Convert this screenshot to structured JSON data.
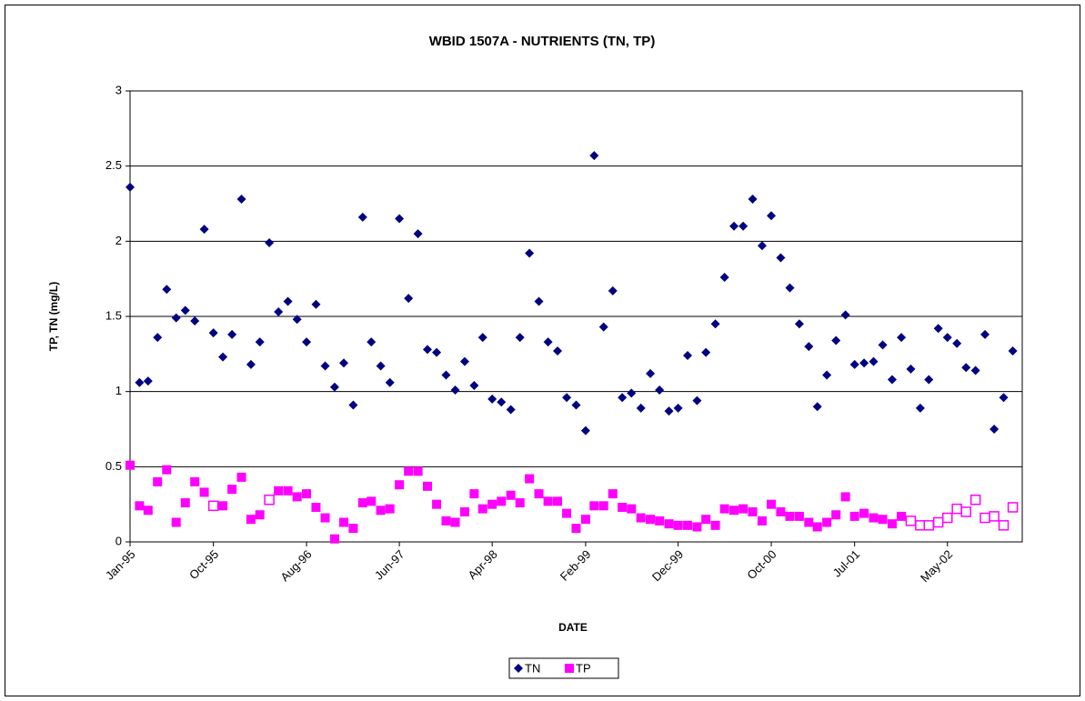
{
  "chart_data": {
    "type": "scatter",
    "title": "WBID 1507A - NUTRIENTS (TN, TP)",
    "x_label": "DATE",
    "y_label": "TP, TN (mg/L)",
    "x": [
      "1995-01",
      "1995-02",
      "1995-03",
      "1995-04",
      "1995-05",
      "1995-06",
      "1995-07",
      "1995-08",
      "1995-09",
      "1995-10",
      "1995-11",
      "1995-12",
      "1996-01",
      "1996-02",
      "1996-03",
      "1996-04",
      "1996-05",
      "1996-06",
      "1996-07",
      "1996-08",
      "1996-09",
      "1996-10",
      "1996-11",
      "1996-12",
      "1997-01",
      "1997-02",
      "1997-03",
      "1997-04",
      "1997-05",
      "1997-06",
      "1997-07",
      "1997-08",
      "1997-09",
      "1997-10",
      "1997-11",
      "1997-12",
      "1998-01",
      "1998-02",
      "1998-03",
      "1998-04",
      "1998-05",
      "1998-06",
      "1998-07",
      "1998-08",
      "1998-09",
      "1998-10",
      "1998-11",
      "1998-12",
      "1999-01",
      "1999-02",
      "1999-03",
      "1999-04",
      "1999-05",
      "1999-06",
      "1999-07",
      "1999-08",
      "1999-09",
      "1999-10",
      "1999-11",
      "1999-12",
      "2000-01",
      "2000-02",
      "2000-03",
      "2000-04",
      "2000-05",
      "2000-06",
      "2000-07",
      "2000-08",
      "2000-09",
      "2000-10",
      "2000-11",
      "2000-12",
      "2001-01",
      "2001-02",
      "2001-03",
      "2001-04",
      "2001-05",
      "2001-06",
      "2001-07",
      "2001-08",
      "2001-09",
      "2001-10",
      "2001-11",
      "2001-12",
      "2002-01",
      "2002-02",
      "2002-03",
      "2002-04",
      "2002-05",
      "2002-06",
      "2002-07",
      "2002-08",
      "2002-09",
      "2002-10",
      "2002-11",
      "2002-12"
    ],
    "series": [
      {
        "name": "TN",
        "color": "#000080",
        "marker": "diamond",
        "values": [
          2.36,
          1.06,
          1.07,
          1.36,
          1.68,
          1.49,
          1.54,
          1.47,
          2.08,
          1.39,
          1.23,
          1.38,
          2.28,
          1.18,
          1.33,
          1.99,
          1.53,
          1.6,
          1.48,
          1.33,
          1.58,
          1.17,
          1.03,
          1.19,
          0.91,
          2.16,
          1.33,
          1.17,
          1.06,
          2.15,
          1.62,
          2.05,
          1.28,
          1.26,
          1.11,
          1.01,
          1.2,
          1.04,
          1.36,
          0.95,
          0.93,
          0.88,
          1.36,
          1.92,
          1.6,
          1.33,
          1.27,
          0.96,
          0.91,
          0.74,
          2.57,
          1.43,
          1.67,
          0.96,
          0.99,
          0.89,
          1.12,
          1.01,
          0.87,
          0.89,
          1.24,
          0.94,
          1.26,
          1.45,
          1.76,
          2.1,
          2.1,
          2.28,
          1.97,
          2.17,
          1.89,
          1.69,
          1.45,
          1.3,
          0.9,
          1.11,
          1.34,
          1.51,
          1.18,
          1.19,
          1.2,
          1.31,
          1.08,
          1.36,
          1.15,
          0.89,
          1.08,
          1.42,
          1.36,
          1.32,
          1.16,
          1.14,
          1.38,
          0.75,
          0.96,
          1.27
        ]
      },
      {
        "name": "TP",
        "color": "#ff00ff",
        "marker": "square",
        "hollow": [
          9,
          15,
          84,
          85,
          86,
          87,
          88,
          89,
          90,
          91,
          92,
          93,
          94,
          95
        ],
        "values": [
          0.51,
          0.24,
          0.21,
          0.4,
          0.48,
          0.13,
          0.26,
          0.4,
          0.33,
          0.24,
          0.24,
          0.35,
          0.43,
          0.15,
          0.18,
          0.28,
          0.34,
          0.34,
          0.3,
          0.32,
          0.23,
          0.16,
          0.02,
          0.13,
          0.09,
          0.26,
          0.27,
          0.21,
          0.22,
          0.38,
          0.47,
          0.47,
          0.37,
          0.25,
          0.14,
          0.13,
          0.2,
          0.32,
          0.22,
          0.25,
          0.27,
          0.31,
          0.26,
          0.42,
          0.32,
          0.27,
          0.27,
          0.19,
          0.09,
          0.15,
          0.24,
          0.24,
          0.32,
          0.23,
          0.22,
          0.16,
          0.15,
          0.14,
          0.12,
          0.11,
          0.11,
          0.1,
          0.15,
          0.11,
          0.22,
          0.21,
          0.22,
          0.2,
          0.14,
          0.25,
          0.2,
          0.17,
          0.17,
          0.13,
          0.1,
          0.13,
          0.18,
          0.3,
          0.17,
          0.19,
          0.16,
          0.15,
          0.12,
          0.17,
          0.14,
          0.11,
          0.11,
          0.13,
          0.16,
          0.22,
          0.2,
          0.28,
          0.16,
          0.17,
          0.11,
          0.23
        ]
      }
    ],
    "xlim": [
      "1995-01",
      "2003-01"
    ],
    "xticks": [
      {
        "value": "1995-01",
        "label": "Jan-95"
      },
      {
        "value": "1995-10",
        "label": "Oct-95"
      },
      {
        "value": "1996-08",
        "label": "Aug-96"
      },
      {
        "value": "1997-06",
        "label": "Jun-97"
      },
      {
        "value": "1998-04",
        "label": "Apr-98"
      },
      {
        "value": "1999-02",
        "label": "Feb-99"
      },
      {
        "value": "1999-12",
        "label": "Dec-99"
      },
      {
        "value": "2000-10",
        "label": "Oct-00"
      },
      {
        "value": "2001-07",
        "label": "Jul-01"
      },
      {
        "value": "2002-05",
        "label": "May-02"
      }
    ],
    "ylim": [
      0,
      3
    ],
    "yticks": [
      0,
      0.5,
      1,
      1.5,
      2,
      2.5,
      3
    ],
    "grid": true,
    "legend": "bottom"
  }
}
